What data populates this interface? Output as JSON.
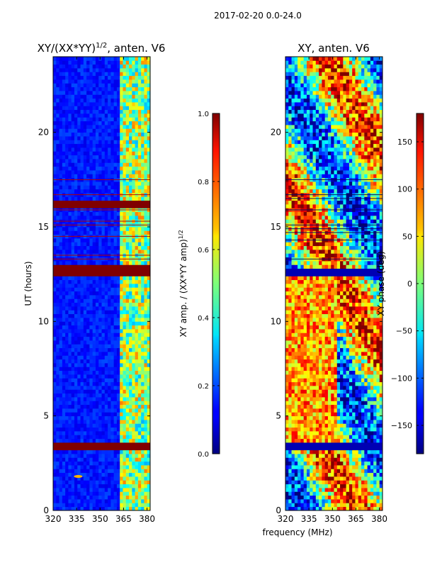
{
  "figure": {
    "suptitle": "2017-02-20 0.0-24.0",
    "xlabel": "frequency (MHz)"
  },
  "chart_data": [
    {
      "type": "heatmap",
      "title": "XY/(XX*YY)",
      "title_sup": "1/2",
      "title_suffix": ", anten. V6",
      "xlabel": "",
      "ylabel": "UT (hours)",
      "xlim": [
        320,
        382
      ],
      "ylim": [
        0,
        24
      ],
      "xticks": [
        "320",
        "335",
        "350",
        "365",
        "380"
      ],
      "yticks": [
        "0",
        "5",
        "10",
        "15",
        "20"
      ],
      "colorbar": {
        "label": "XY amp. / (XX*YY amp)",
        "label_sup": "1/2",
        "range": [
          0.0,
          1.0
        ],
        "ticks": [
          "0.0",
          "0.2",
          "0.4",
          "0.6",
          "0.8",
          "1.0"
        ],
        "colormap": "jet"
      },
      "features": {
        "saturated_bands_hours": [
          [
            3.2,
            3.6
          ],
          [
            12.4,
            12.9
          ],
          [
            16.0,
            16.3
          ]
        ],
        "dense_flag_region_hours": [
          13.2,
          18.0
        ],
        "high_amplitude_band_MHz": [
          363,
          382
        ],
        "rfi_spike_hours": 1.8,
        "rfi_spike_MHz": 336
      }
    },
    {
      "type": "heatmap",
      "title": "XY, anten. V6",
      "xlabel": "",
      "ylabel": "",
      "xlim": [
        320,
        382
      ],
      "ylim": [
        0,
        24
      ],
      "xticks": [
        "320",
        "335",
        "350",
        "365",
        "380"
      ],
      "yticks": [
        "0",
        "5",
        "10",
        "15",
        "20"
      ],
      "colorbar": {
        "label": "XY phase (deg)",
        "range": [
          -180,
          180
        ],
        "ticks": [
          "150",
          "100",
          "50",
          "0",
          "−50",
          "−100",
          "−150"
        ],
        "tick_values": [
          150,
          100,
          50,
          0,
          -50,
          -100,
          -150
        ],
        "colormap": "jet"
      },
      "features": {
        "dark_bands_hours": [
          [
            3.3,
            3.6
          ],
          [
            12.5,
            12.8
          ]
        ],
        "dense_flag_region_hours": [
          13.0,
          18.0
        ]
      }
    }
  ]
}
